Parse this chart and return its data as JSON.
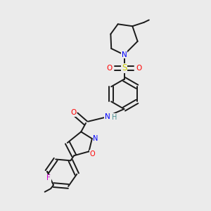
{
  "background_color": "#ebebeb",
  "figure_size": [
    3.0,
    3.0
  ],
  "dpi": 100,
  "colors": {
    "C": "#1a1a1a",
    "N": "#0000ff",
    "O": "#ff0000",
    "S": "#cccc00",
    "F": "#cc00cc",
    "H": "#4a9090",
    "bond": "#1a1a1a"
  },
  "bond_lw": 1.4
}
